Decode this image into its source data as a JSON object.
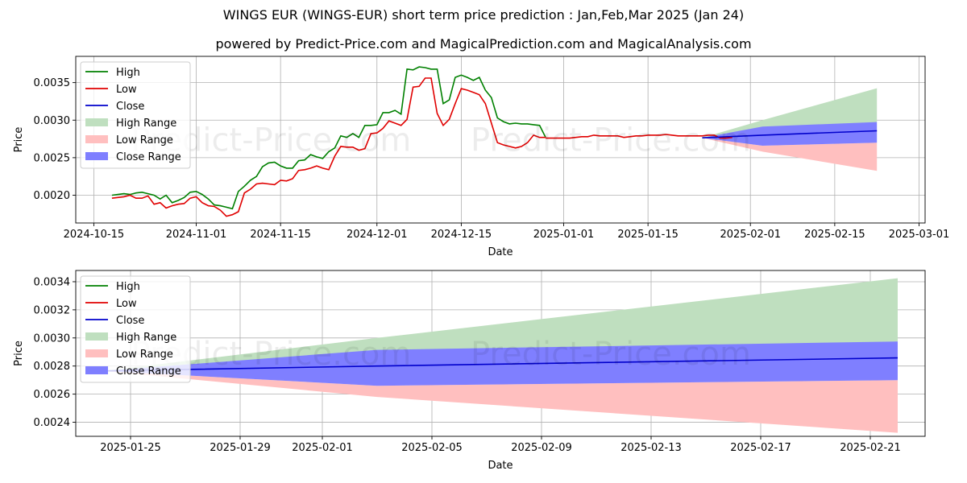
{
  "title": "WINGS EUR (WINGS-EUR) short term price prediction : Jan,Feb,Mar 2025 (Jan 24)",
  "subtitle": "powered by Predict-Price.com and MagicalPrediction.com and MagicalAnalysis.com",
  "watermark": "Predict-Price.com",
  "colors": {
    "high": "#008000",
    "low": "#e00000",
    "close": "#0000cc",
    "high_range": "#bfdfbf",
    "low_range": "#ffbfbf",
    "close_range": "#7f7fff"
  },
  "legend": {
    "high": "High",
    "low": "Low",
    "close": "Close",
    "high_range": "High Range",
    "low_range": "Low Range",
    "close_range": "Close Range"
  },
  "chart_data": [
    {
      "type": "line",
      "name": "full-history",
      "xlabel": "Date",
      "ylabel": "Price",
      "xlim": [
        "2024-10-12",
        "2025-03-02"
      ],
      "ylim": [
        0.00163,
        0.00385
      ],
      "x_ticks": [
        "2024-10-15",
        "2024-11-01",
        "2024-11-15",
        "2024-12-01",
        "2024-12-15",
        "2025-01-01",
        "2025-01-15",
        "2025-02-01",
        "2025-02-15",
        "2025-03-01"
      ],
      "y_ticks": [
        "0.0020",
        "0.0025",
        "0.0030",
        "0.0035"
      ],
      "history_start": "2024-10-18",
      "high": [
        0.002,
        0.00201,
        0.00202,
        0.00201,
        0.00203,
        0.00204,
        0.00202,
        0.002,
        0.00195,
        0.002,
        0.0019,
        0.00193,
        0.00197,
        0.00204,
        0.00205,
        0.00201,
        0.00195,
        0.00187,
        0.00186,
        0.00184,
        0.00182,
        0.00205,
        0.00212,
        0.0022,
        0.00225,
        0.00238,
        0.00243,
        0.00244,
        0.00239,
        0.00236,
        0.00236,
        0.00246,
        0.00247,
        0.00254,
        0.00251,
        0.00249,
        0.00258,
        0.00263,
        0.00279,
        0.00277,
        0.00282,
        0.00277,
        0.00293,
        0.00293,
        0.00294,
        0.0031,
        0.0031,
        0.00313,
        0.00308,
        0.00368,
        0.00367,
        0.00371,
        0.0037,
        0.00368,
        0.00368,
        0.00322,
        0.00327,
        0.00357,
        0.0036,
        0.00357,
        0.00353,
        0.00357,
        0.0034,
        0.0033,
        0.00303,
        0.00298,
        0.00295,
        0.00296,
        0.00295,
        0.00295,
        0.00294,
        0.00293,
        0.00277
      ],
      "low": [
        0.00196,
        0.00197,
        0.00198,
        0.002,
        0.00196,
        0.00196,
        0.00199,
        0.00188,
        0.0019,
        0.00183,
        0.00186,
        0.00188,
        0.00189,
        0.00196,
        0.00198,
        0.0019,
        0.00186,
        0.00185,
        0.0018,
        0.00172,
        0.00174,
        0.00178,
        0.00203,
        0.00208,
        0.00215,
        0.00216,
        0.00215,
        0.00214,
        0.0022,
        0.00219,
        0.00222,
        0.00233,
        0.00234,
        0.00236,
        0.00239,
        0.00236,
        0.00234,
        0.00252,
        0.00265,
        0.00264,
        0.00264,
        0.0026,
        0.00262,
        0.00282,
        0.00283,
        0.00289,
        0.00299,
        0.00296,
        0.00293,
        0.00301,
        0.00344,
        0.00345,
        0.00356,
        0.00356,
        0.00309,
        0.00293,
        0.00301,
        0.00322,
        0.00342,
        0.0034,
        0.00337,
        0.00334,
        0.00322,
        0.00296,
        0.0027,
        0.00267,
        0.00265,
        0.00263,
        0.00265,
        0.0027,
        0.0028,
        0.00277,
        0.00277
      ],
      "close_flat": [
        0.00276,
        0.00276,
        0.00276,
        0.00276,
        0.00276,
        0.00277,
        0.00278,
        0.00278,
        0.0028,
        0.00279,
        0.00279,
        0.00279,
        0.00279,
        0.00277,
        0.00278,
        0.00279,
        0.00279,
        0.0028,
        0.0028,
        0.0028,
        0.00281,
        0.0028,
        0.00279,
        0.00279,
        0.00279,
        0.00279,
        0.00279,
        0.0028,
        0.0028,
        0.00276,
        0.00276,
        0.00277
      ],
      "close_flat_start": "2024-12-29",
      "forecast": {
        "dates": [
          "2025-01-24",
          "2025-02-03",
          "2025-02-22"
        ],
        "close": [
          0.002765,
          0.0028,
          0.002858
        ],
        "high_range": [
          [
            0.002765,
            0.002765
          ],
          [
            0.00288,
            0.003
          ],
          [
            0.00297,
            0.003425
          ]
        ],
        "close_range": [
          [
            0.002765,
            0.002765
          ],
          [
            0.00266,
            0.002915
          ],
          [
            0.0027,
            0.002975
          ]
        ],
        "low_range": [
          [
            0.002765,
            0.002765
          ],
          [
            0.00258,
            0.00266
          ],
          [
            0.002325,
            0.0027
          ]
        ]
      }
    },
    {
      "type": "area",
      "name": "forecast-zoom",
      "xlabel": "Date",
      "ylabel": "Price",
      "xlim": [
        "2025-01-23",
        "2025-02-23"
      ],
      "ylim": [
        0.0023,
        0.00348
      ],
      "x_ticks": [
        "2025-01-25",
        "2025-01-29",
        "2025-02-01",
        "2025-02-05",
        "2025-02-09",
        "2025-02-13",
        "2025-02-17",
        "2025-02-21"
      ],
      "y_ticks": [
        "0.0024",
        "0.0026",
        "0.0028",
        "0.0030",
        "0.0032",
        "0.0034"
      ],
      "forecast": {
        "dates": [
          "2025-01-24",
          "2025-02-03",
          "2025-02-22"
        ],
        "close": [
          0.002765,
          0.0028,
          0.002858
        ],
        "high_range": [
          [
            0.002765,
            0.002765
          ],
          [
            0.00288,
            0.003
          ],
          [
            0.00297,
            0.003425
          ]
        ],
        "close_range": [
          [
            0.002765,
            0.002765
          ],
          [
            0.00266,
            0.002915
          ],
          [
            0.0027,
            0.002975
          ]
        ],
        "low_range": [
          [
            0.002765,
            0.002765
          ],
          [
            0.00258,
            0.00266
          ],
          [
            0.002325,
            0.0027
          ]
        ]
      }
    }
  ]
}
